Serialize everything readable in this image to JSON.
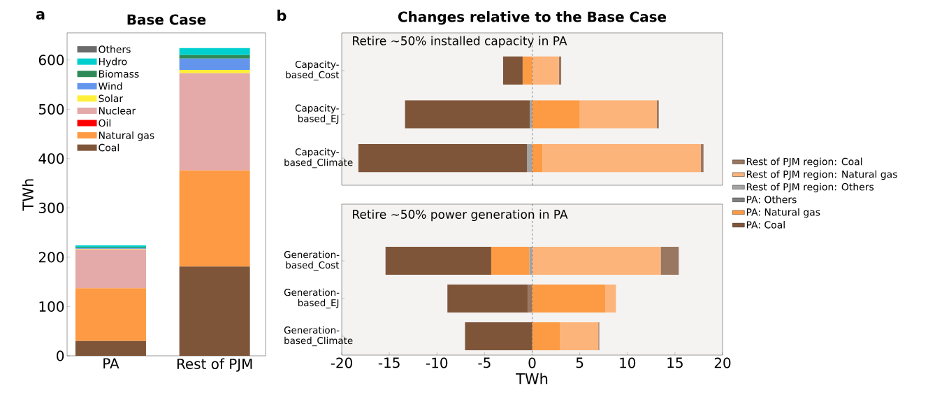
{
  "chart_data": [
    {
      "type": "bar",
      "stacked": true,
      "title": "Base Case",
      "ylabel": "TWh",
      "annotations": [
        "a"
      ],
      "categories": [
        "PA",
        "Rest of PJM"
      ],
      "ylim": [
        0,
        655
      ],
      "yticks": [
        0,
        100,
        200,
        300,
        400,
        500,
        600
      ],
      "legend": "top left",
      "series": [
        {
          "name": "Coal",
          "color": "#7f5539",
          "values": [
            30,
            181
          ]
        },
        {
          "name": "Natural gas",
          "color": "#fe9a43",
          "values": [
            107,
            195
          ]
        },
        {
          "name": "Oil",
          "color": "#ff0000",
          "values": [
            0,
            0
          ]
        },
        {
          "name": "Nuclear",
          "color": "#e4a9a9",
          "values": [
            79,
            197
          ]
        },
        {
          "name": "Solar",
          "color": "#ffef3a",
          "values": [
            1,
            7
          ]
        },
        {
          "name": "Wind",
          "color": "#6495ed",
          "values": [
            1,
            23
          ]
        },
        {
          "name": "Biomass",
          "color": "#2e8b57",
          "values": [
            2,
            7
          ]
        },
        {
          "name": "Hydro",
          "color": "#00cfcf",
          "values": [
            4,
            14
          ]
        },
        {
          "name": "Others",
          "color": "#6b6b6b",
          "values": [
            0,
            0
          ]
        }
      ]
    },
    {
      "type": "bar",
      "orientation": "horizontal",
      "title": "Changes relative to the Base Case",
      "annotations": [
        "b",
        "Retire ~50% installed capacity in PA"
      ],
      "categories": [
        "Capacity-based_Cost",
        "Capacity-based_EJ",
        "Capacity-based_Climate"
      ],
      "xlim": [
        -20,
        20
      ],
      "xticks": [
        -20,
        -15,
        -10,
        -5,
        0,
        5,
        10,
        15,
        20
      ],
      "tick_labels": "y",
      "legend": "right",
      "ref_lines": [
        {
          "axis": "x",
          "value": 0,
          "color": "#4a6f8a",
          "line_style": "dashed"
        }
      ],
      "series": [
        {
          "name": "Rest of PJM region: Coal",
          "color": "#9a7760",
          "values": [
            0.25,
            0.2,
            0.3
          ],
          "base": [
            2.8,
            13.1,
            17.7
          ]
        },
        {
          "name": "Rest of PJM region: Natural gas",
          "color": "#fdb47a",
          "values": [
            2.8,
            8.1,
            16.6
          ],
          "base": [
            0,
            5.0,
            1.1
          ]
        },
        {
          "name": "Rest of PJM region: Others",
          "color": "#a3a3a3",
          "values": [
            null,
            -0.25,
            -0.55
          ],
          "base": [
            null,
            0,
            0
          ]
        },
        {
          "name": "PA: Others",
          "color": "#808080",
          "values": [
            null,
            null,
            null
          ],
          "base": [
            null,
            null,
            null
          ]
        },
        {
          "name": "PA: Natural gas",
          "color": "#fd9a44",
          "values": [
            -1.0,
            5.0,
            1.1
          ],
          "base": [
            0,
            0,
            0
          ]
        },
        {
          "name": "PA: Coal",
          "color": "#7f5539",
          "values": [
            -2.05,
            -13.1,
            -17.7
          ],
          "base": [
            -1.0,
            -0.25,
            -0.55
          ]
        }
      ]
    },
    {
      "type": "bar",
      "orientation": "horizontal",
      "xlabel": "TWh",
      "annotations": [
        "Retire ~50% power generation in PA"
      ],
      "categories": [
        "Generation-based_Cost",
        "Generation-based_EJ",
        "Generation-based_Climate"
      ],
      "xlim": [
        -20,
        20
      ],
      "xticks": [
        -20,
        -15,
        -10,
        -5,
        0,
        5,
        10,
        15,
        20
      ],
      "ref_lines": [
        {
          "axis": "x",
          "value": 0,
          "color": "#4a6f8a",
          "line_style": "dashed"
        }
      ],
      "series": [
        {
          "color": "#9a7760",
          "values": [
            1.9,
            -0.45,
            0.1
          ],
          "base": [
            13.5,
            0,
            6.95
          ]
        },
        {
          "color": "#fdb47a",
          "values": [
            13.5,
            1.1,
            4.05
          ],
          "base": [
            0,
            7.7,
            2.9
          ]
        },
        {
          "color": "#a3a3a3",
          "values": [
            -0.3,
            null,
            null
          ],
          "base": [
            0,
            null,
            null
          ]
        },
        {
          "color": "#fd9a44",
          "values": [
            -4.0,
            7.7,
            2.9
          ],
          "base": [
            -0.3,
            0,
            0
          ]
        },
        {
          "color": "#7f5539",
          "values": [
            -11.1,
            -8.45,
            -7.05
          ],
          "base": [
            -4.3,
            -0.45,
            0
          ]
        }
      ]
    }
  ]
}
